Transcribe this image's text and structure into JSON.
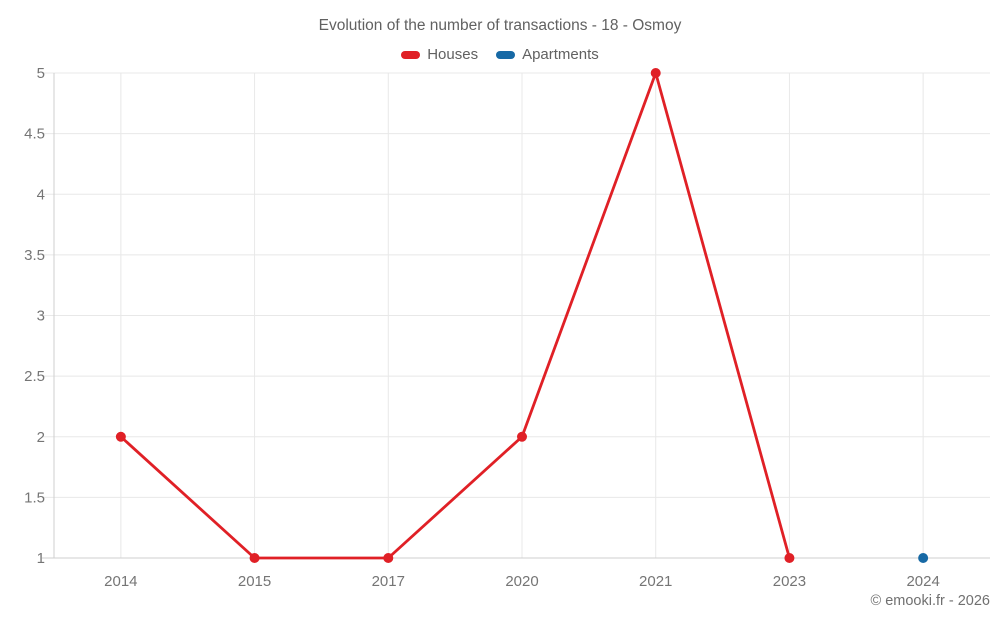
{
  "footer": {
    "text": "© emooki.fr - 2026"
  },
  "colors": {
    "houses": "#e02026",
    "apartments": "#1769a5",
    "grid": "#e8e8e8",
    "axis": "#cfcfcf",
    "title_text": "#616161",
    "axis_text": "#757575",
    "footer_text": "#707070"
  },
  "chart_data": {
    "type": "line",
    "title": "Evolution of the number of transactions - 18 - Osmoy",
    "categories": [
      "2014",
      "2015",
      "2017",
      "2020",
      "2021",
      "2023",
      "2024"
    ],
    "series": [
      {
        "name": "Houses",
        "color": "#e02026",
        "values": [
          2,
          1,
          1,
          2,
          5,
          1,
          null
        ]
      },
      {
        "name": "Apartments",
        "color": "#1769a5",
        "values": [
          null,
          null,
          null,
          null,
          null,
          null,
          1
        ]
      }
    ],
    "ylim": [
      1,
      5
    ],
    "yticks": [
      1,
      1.5,
      2,
      2.5,
      3,
      3.5,
      4,
      4.5,
      5
    ],
    "ytick_labels": [
      "1",
      "1.5",
      "2",
      "2.5",
      "3",
      "3.5",
      "4",
      "4.5",
      "5"
    ],
    "xlabel": "",
    "ylabel": "",
    "grid": true,
    "legend_position": "top"
  }
}
